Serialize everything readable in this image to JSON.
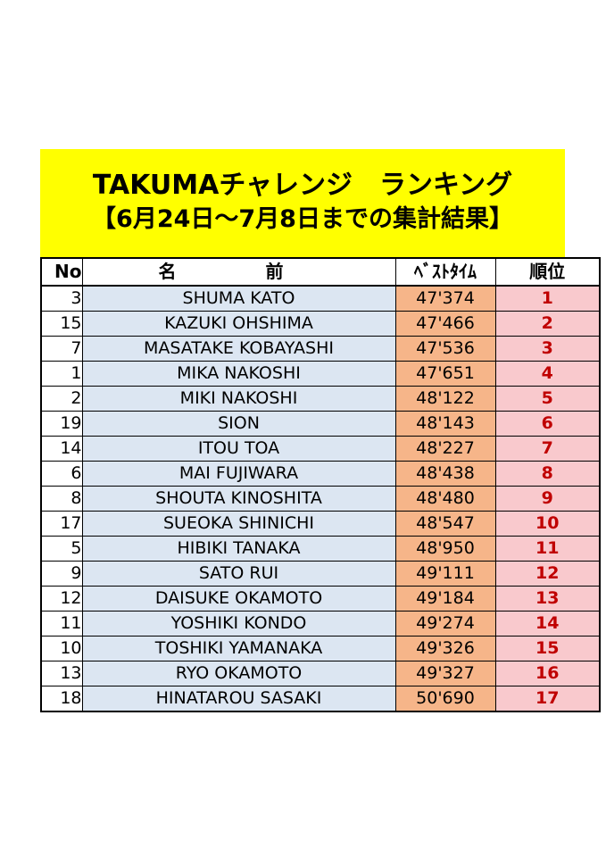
{
  "title": {
    "line1": "TAKUMAチャレンジ　ランキング",
    "line2": "【6月24日～7月8日までの集計結果】"
  },
  "table": {
    "headers": {
      "no": "No",
      "name": "名　前",
      "time": "ﾍﾞｽﾄﾀｲﾑ",
      "rank": "順位"
    },
    "rows": [
      {
        "no": "3",
        "name": "SHUMA KATO",
        "time": "47'374",
        "rank": "1"
      },
      {
        "no": "15",
        "name": "KAZUKI OHSHIMA",
        "time": "47'466",
        "rank": "2"
      },
      {
        "no": "7",
        "name": "MASATAKE KOBAYASHI",
        "time": "47'536",
        "rank": "3"
      },
      {
        "no": "1",
        "name": "MIKA NAKOSHI",
        "time": "47'651",
        "rank": "4"
      },
      {
        "no": "2",
        "name": "MIKI NAKOSHI",
        "time": "48'122",
        "rank": "5"
      },
      {
        "no": "19",
        "name": "SION",
        "time": "48'143",
        "rank": "6"
      },
      {
        "no": "14",
        "name": "ITOU TOA",
        "time": "48'227",
        "rank": "7"
      },
      {
        "no": "6",
        "name": "MAI FUJIWARA",
        "time": "48'438",
        "rank": "8"
      },
      {
        "no": "8",
        "name": "SHOUTA KINOSHITA",
        "time": "48'480",
        "rank": "9"
      },
      {
        "no": "17",
        "name": "SUEOKA SHINICHI",
        "time": "48'547",
        "rank": "10"
      },
      {
        "no": "5",
        "name": "HIBIKI TANAKA",
        "time": "48'950",
        "rank": "11"
      },
      {
        "no": "9",
        "name": "SATO RUI",
        "time": "49'111",
        "rank": "12"
      },
      {
        "no": "12",
        "name": "DAISUKE OKAMOTO",
        "time": "49'184",
        "rank": "13"
      },
      {
        "no": "11",
        "name": "YOSHIKI KONDO",
        "time": "49'274",
        "rank": "14"
      },
      {
        "no": "10",
        "name": "TOSHIKI YAMANAKA",
        "time": "49'326",
        "rank": "15"
      },
      {
        "no": "13",
        "name": "RYO OKAMOTO",
        "time": "49'327",
        "rank": "16"
      },
      {
        "no": "18",
        "name": "HINATAROU SASAKI",
        "time": "50'690",
        "rank": "17"
      }
    ]
  },
  "colors": {
    "title_background": "#ffff00",
    "name_column": "#dce6f2",
    "time_column": "#f6b589",
    "rank_column": "#f9c9cd",
    "rank_text": "#c00000"
  }
}
